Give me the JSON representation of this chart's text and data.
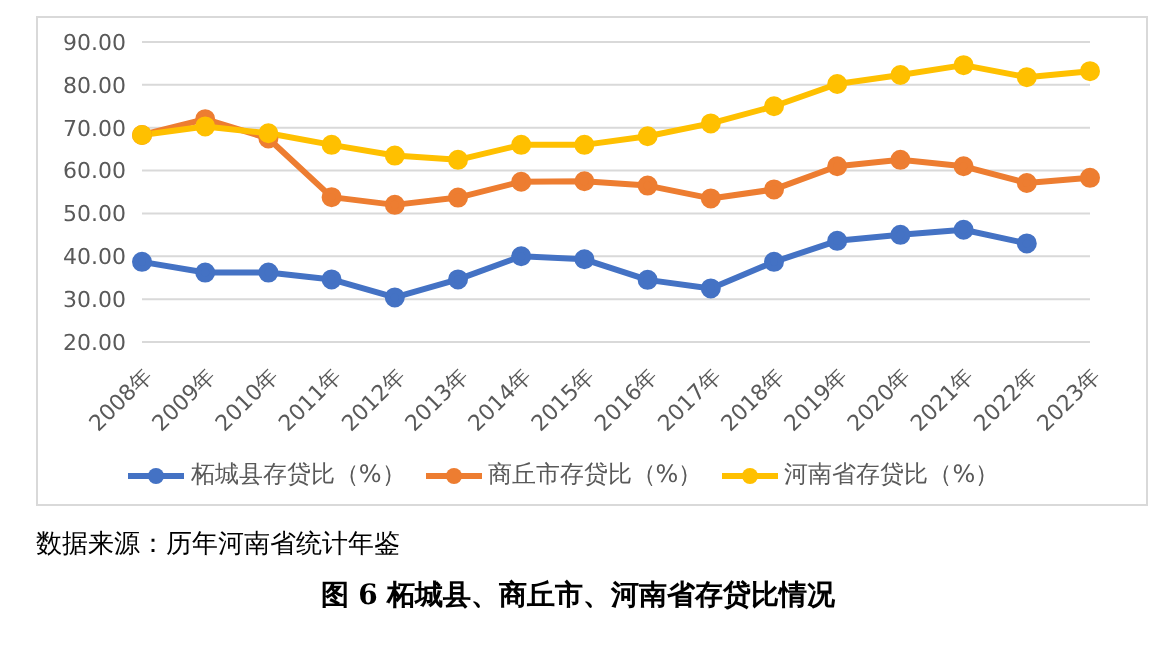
{
  "chart_data": {
    "type": "line",
    "title": "图 6  柘城县、商丘市、河南省存贷比情况",
    "annotations": [
      "数据来源：历年河南省统计年鉴"
    ],
    "categories": [
      "2008年",
      "2009年",
      "2010年",
      "2011年",
      "2012年",
      "2013年",
      "2014年",
      "2015年",
      "2016年",
      "2017年",
      "2018年",
      "2019年",
      "2020年",
      "2021年",
      "2022年",
      "2023年"
    ],
    "series": [
      {
        "name": "柘城县存贷比（%）",
        "color": "#4472c4",
        "values": [
          38.7,
          36.2,
          36.2,
          34.6,
          30.4,
          34.6,
          40,
          39.3,
          34.5,
          32.5,
          38.7,
          43.6,
          45,
          46.2,
          43,
          null
        ]
      },
      {
        "name": "商丘市存贷比（%）",
        "color": "#ed7d31",
        "values": [
          68.3,
          72,
          67.5,
          53.8,
          52,
          53.7,
          57.4,
          57.5,
          56.5,
          53.5,
          55.6,
          61,
          62.5,
          61,
          57.1,
          58.3
        ]
      },
      {
        "name": "河南省存贷比（%）",
        "color": "#ffc000",
        "values": [
          68.3,
          70.3,
          68.7,
          66,
          63.5,
          62.5,
          66,
          66,
          68,
          71,
          75,
          80.2,
          82.3,
          84.6,
          81.8,
          83.2
        ]
      }
    ],
    "ylim": [
      20,
      90
    ],
    "yticks": [
      {
        "value": 20,
        "label": "20.00"
      },
      {
        "value": 30,
        "label": "30.00"
      },
      {
        "value": 40,
        "label": "40.00"
      },
      {
        "value": 50,
        "label": "50.00"
      },
      {
        "value": 60,
        "label": "60.00"
      },
      {
        "value": 70,
        "label": "70.00"
      },
      {
        "value": 80,
        "label": "80.00"
      },
      {
        "value": 90,
        "label": "90.00"
      }
    ],
    "grid": "y",
    "legend": "bottom",
    "marker": "circle",
    "line_style": "solid"
  }
}
